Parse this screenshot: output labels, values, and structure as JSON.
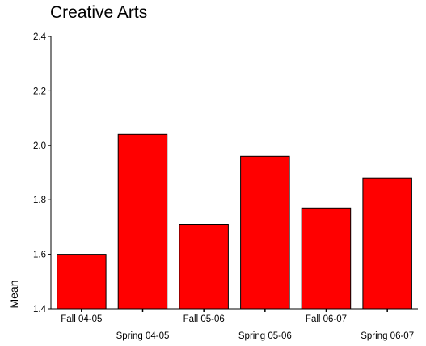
{
  "chart_data": {
    "type": "bar",
    "title": "Creative Arts",
    "xlabel": "",
    "ylabel": "Mean",
    "categories": [
      "Fall 04-05",
      "Spring 04-05",
      "Fall 05-06",
      "Spring 05-06",
      "Fall 06-07",
      "Spring 06-07"
    ],
    "values": [
      1.6,
      2.04,
      1.71,
      1.96,
      1.77,
      1.88
    ],
    "ylim": [
      1.4,
      2.4
    ],
    "yticks": [
      "1.4",
      "1.6",
      "1.8",
      "2.0",
      "2.2",
      "2.4"
    ],
    "grid": false,
    "legend": "none",
    "colors": {
      "bar": "#ff0000",
      "bar_stroke": "#000000"
    }
  }
}
